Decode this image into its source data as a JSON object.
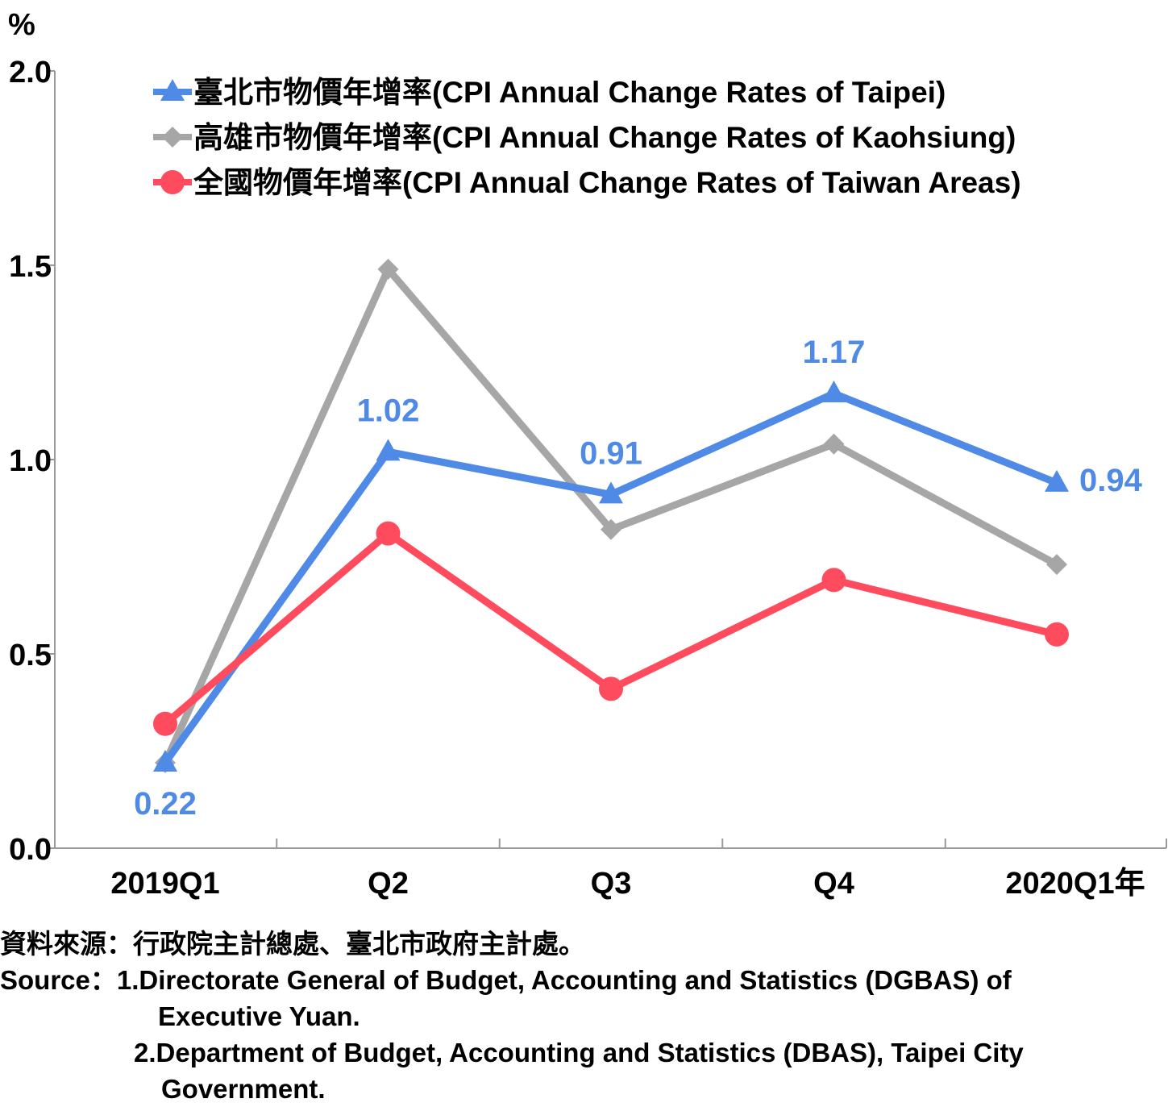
{
  "chart_data": {
    "type": "line",
    "unit_label": "%",
    "categories": [
      "2019Q1",
      "Q2",
      "Q3",
      "Q4",
      "2020Q1年"
    ],
    "y_ticks": [
      "0.0",
      "0.5",
      "1.0",
      "1.5",
      "2.0"
    ],
    "ylim": [
      0,
      2.0
    ],
    "grid": false,
    "legend_position": "top",
    "series": [
      {
        "name": "臺北市物價年增率(CPI Annual Change Rates of Taipei)",
        "values": [
          0.22,
          1.02,
          0.91,
          1.17,
          0.94
        ],
        "color": "#4f8ae6",
        "marker": "triangle",
        "labels": [
          "0.22",
          "1.02",
          "0.91",
          "1.17",
          "0.94"
        ]
      },
      {
        "name": "高雄市物價年增率(CPI Annual Change Rates of Kaohsiung)",
        "values": [
          0.22,
          1.49,
          0.82,
          1.04,
          0.73
        ],
        "color": "#a6a6a6",
        "marker": "diamond"
      },
      {
        "name": "全國物價年增率(CPI Annual Change Rates of Taiwan Areas)",
        "values": [
          0.32,
          0.81,
          0.41,
          0.69,
          0.55
        ],
        "color": "#ff4b5e",
        "marker": "circle"
      }
    ]
  },
  "notes": {
    "source_zh": "資料來源：行政院主計總處、臺北市政府主計處。",
    "source_label": "Source：",
    "source_1a": "1.Directorate General of Budget, Accounting and Statistics (DGBAS) of",
    "source_1b": "Executive Yuan.",
    "source_2a": "2.Department of Budget, Accounting and Statistics (DBAS), Taipei City",
    "source_2b": "Government."
  }
}
